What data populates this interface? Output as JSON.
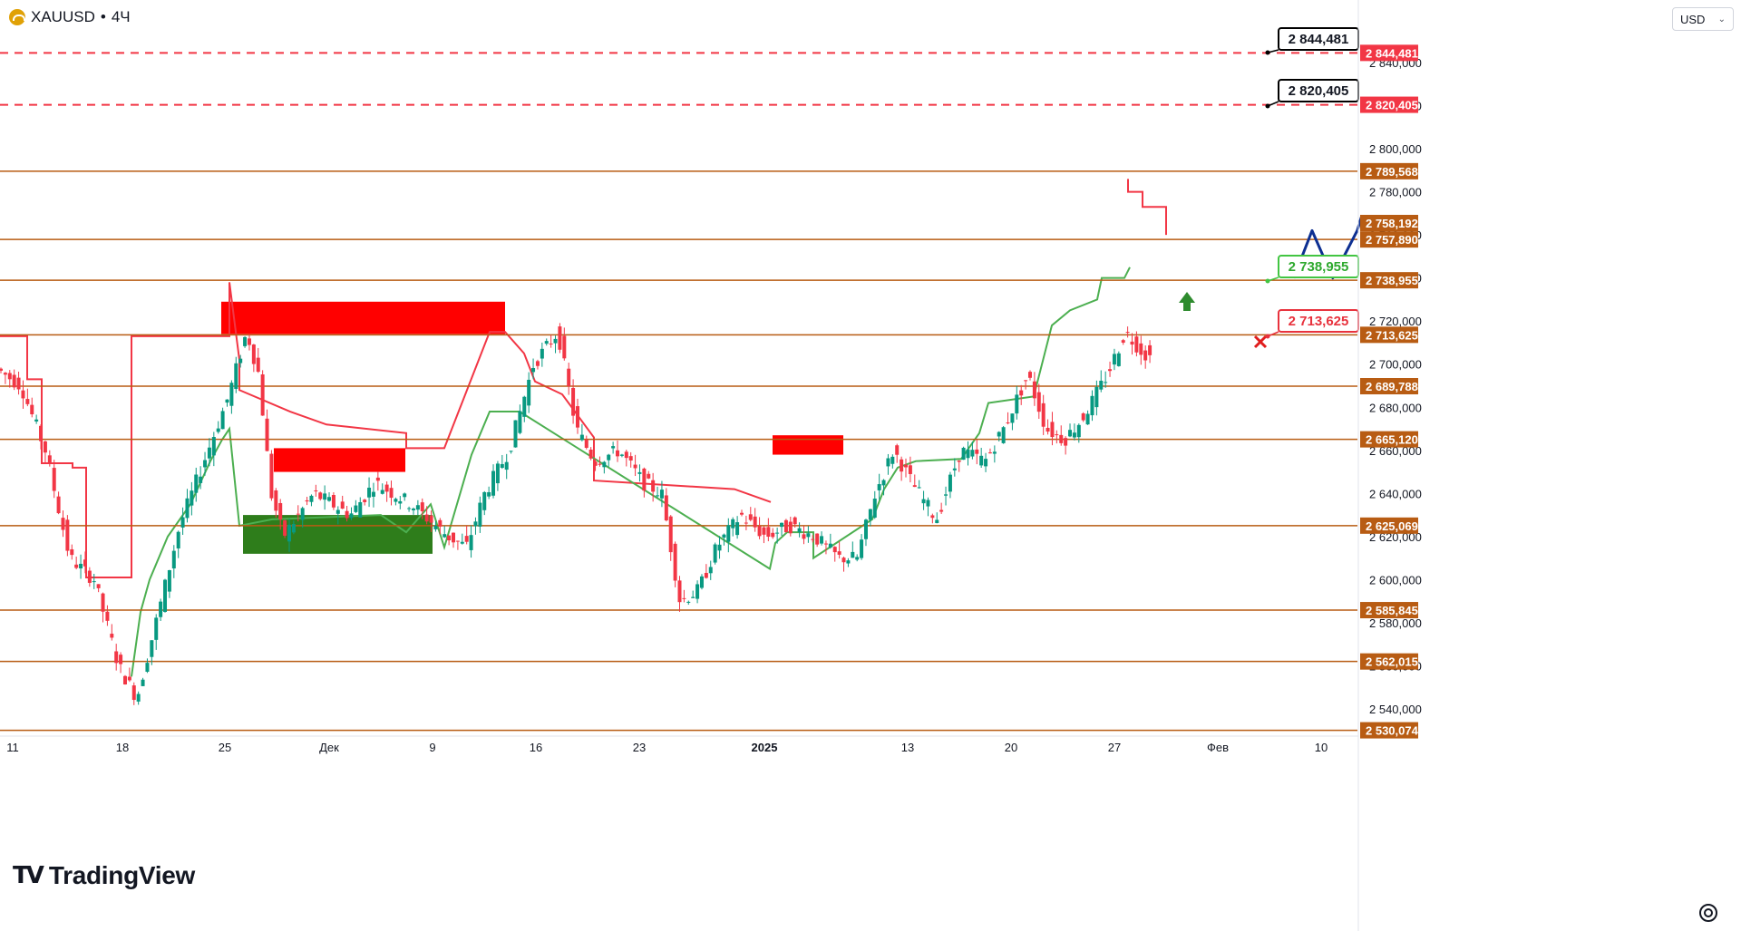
{
  "header": {
    "symbol": "XAUUSD",
    "separator": "•",
    "interval": "4Ч",
    "currency": "USD"
  },
  "branding": {
    "logo_text": "TradingView"
  },
  "colors": {
    "resistance_line": "#b85c13",
    "target_line": "#f23645",
    "up_candle": "#089981",
    "down_candle": "#f23645",
    "projection": "#0d2f91",
    "stop_green": "#4caf50",
    "stop_red": "#f23645",
    "zone_red": "#ff0000",
    "zone_green": "#2e7d1b"
  },
  "chart_data": {
    "type": "candlestick",
    "symbol": "XAUUSD",
    "interval": "4Ч",
    "x_ticks": [
      "11",
      "18",
      "25",
      "Дек",
      "9",
      "16",
      "23",
      "2025",
      "13",
      "20",
      "27",
      "Фев",
      "10"
    ],
    "y_ticks": [
      "2 840,000",
      "2 820,000",
      "2 800,000",
      "2 780,000",
      "2 760,000",
      "2 740,000",
      "2 720,000",
      "2 700,000",
      "2 680,000",
      "2 660,000",
      "2 640,000",
      "2 620,000",
      "2 600,000",
      "2 580,000",
      "2 560,000",
      "2 540,000"
    ],
    "ylim": [
      2530,
      2850
    ],
    "price_levels": [
      {
        "label": "2 844,481",
        "value": 2844.481,
        "style": "dashed",
        "kind": "target"
      },
      {
        "label": "2 820,405",
        "value": 2820.405,
        "style": "dashed",
        "kind": "target"
      },
      {
        "label": "2 789,568",
        "value": 2789.568,
        "style": "solid",
        "kind": "level"
      },
      {
        "label": "2 757,890",
        "value": 2757.89,
        "style": "solid",
        "kind": "level"
      },
      {
        "label": "2 738,955",
        "value": 2738.955,
        "style": "solid",
        "kind": "level"
      },
      {
        "label": "2 713,625",
        "value": 2713.625,
        "style": "solid",
        "kind": "level"
      },
      {
        "label": "2 689,788",
        "value": 2689.788,
        "style": "solid",
        "kind": "level"
      },
      {
        "label": "2 665,120",
        "value": 2665.12,
        "style": "solid",
        "kind": "level"
      },
      {
        "label": "2 625,069",
        "value": 2625.069,
        "style": "solid",
        "kind": "level"
      },
      {
        "label": "2 585,845",
        "value": 2585.845,
        "style": "solid",
        "kind": "level"
      },
      {
        "label": "2 562,015",
        "value": 2562.015,
        "style": "solid",
        "kind": "level"
      },
      {
        "label": "2 530,074",
        "value": 2530.074,
        "style": "solid",
        "kind": "level"
      }
    ],
    "current_price_label": "2 758,192",
    "current_price": 2758.192,
    "callouts": [
      {
        "label": "2 844,481",
        "value": 2844.481,
        "style": "target"
      },
      {
        "label": "2 820,405",
        "value": 2820.405,
        "style": "target"
      },
      {
        "label": "2 738,955",
        "value": 2738.955,
        "style": "entry"
      },
      {
        "label": "2 713,625",
        "value": 2713.625,
        "style": "stop"
      }
    ],
    "price_path": [
      [
        0.0,
        2698
      ],
      [
        0.02,
        2690
      ],
      [
        0.04,
        2660
      ],
      [
        0.06,
        2610
      ],
      [
        0.08,
        2600
      ],
      [
        0.1,
        2560
      ],
      [
        0.115,
        2545
      ],
      [
        0.135,
        2590
      ],
      [
        0.15,
        2625
      ],
      [
        0.17,
        2655
      ],
      [
        0.19,
        2685
      ],
      [
        0.205,
        2715
      ],
      [
        0.215,
        2695
      ],
      [
        0.225,
        2640
      ],
      [
        0.235,
        2620
      ],
      [
        0.26,
        2640
      ],
      [
        0.29,
        2630
      ],
      [
        0.31,
        2645
      ],
      [
        0.34,
        2635
      ],
      [
        0.37,
        2620
      ],
      [
        0.385,
        2615
      ],
      [
        0.4,
        2640
      ],
      [
        0.42,
        2660
      ],
      [
        0.44,
        2700
      ],
      [
        0.46,
        2715
      ],
      [
        0.475,
        2670
      ],
      [
        0.49,
        2655
      ],
      [
        0.51,
        2660
      ],
      [
        0.53,
        2645
      ],
      [
        0.545,
        2640
      ],
      [
        0.56,
        2590
      ],
      [
        0.575,
        2595
      ],
      [
        0.59,
        2615
      ],
      [
        0.61,
        2630
      ],
      [
        0.63,
        2620
      ],
      [
        0.65,
        2625
      ],
      [
        0.67,
        2620
      ],
      [
        0.69,
        2610
      ],
      [
        0.705,
        2610
      ],
      [
        0.72,
        2640
      ],
      [
        0.735,
        2660
      ],
      [
        0.75,
        2645
      ],
      [
        0.77,
        2628
      ],
      [
        0.79,
        2660
      ],
      [
        0.81,
        2655
      ],
      [
        0.825,
        2670
      ],
      [
        0.845,
        2695
      ],
      [
        0.86,
        2670
      ],
      [
        0.875,
        2665
      ],
      [
        0.89,
        2675
      ],
      [
        0.91,
        2695
      ],
      [
        0.925,
        2715
      ],
      [
        0.94,
        2705
      ],
      [
        0.955,
        2700
      ],
      [
        0.965,
        2712
      ],
      [
        0.975,
        2725
      ],
      [
        0.985,
        2740
      ],
      [
        1.0,
        2750
      ],
      [
        1.02,
        2762
      ],
      [
        1.035,
        2745
      ],
      [
        1.05,
        2770
      ],
      [
        1.06,
        2785
      ],
      [
        1.07,
        2765
      ],
      [
        1.08,
        2735
      ],
      [
        1.09,
        2745
      ],
      [
        1.1,
        2760
      ]
    ],
    "projection_path": [
      [
        1.06,
        2740
      ],
      [
        1.075,
        2762
      ],
      [
        1.092,
        2740
      ],
      [
        1.112,
        2762
      ],
      [
        1.125,
        2786
      ],
      [
        1.145,
        2732
      ],
      [
        1.165,
        2762
      ],
      [
        1.185,
        2738
      ],
      [
        1.27,
        2830
      ],
      [
        1.285,
        2840
      ],
      [
        1.295,
        2830
      ]
    ]
  }
}
